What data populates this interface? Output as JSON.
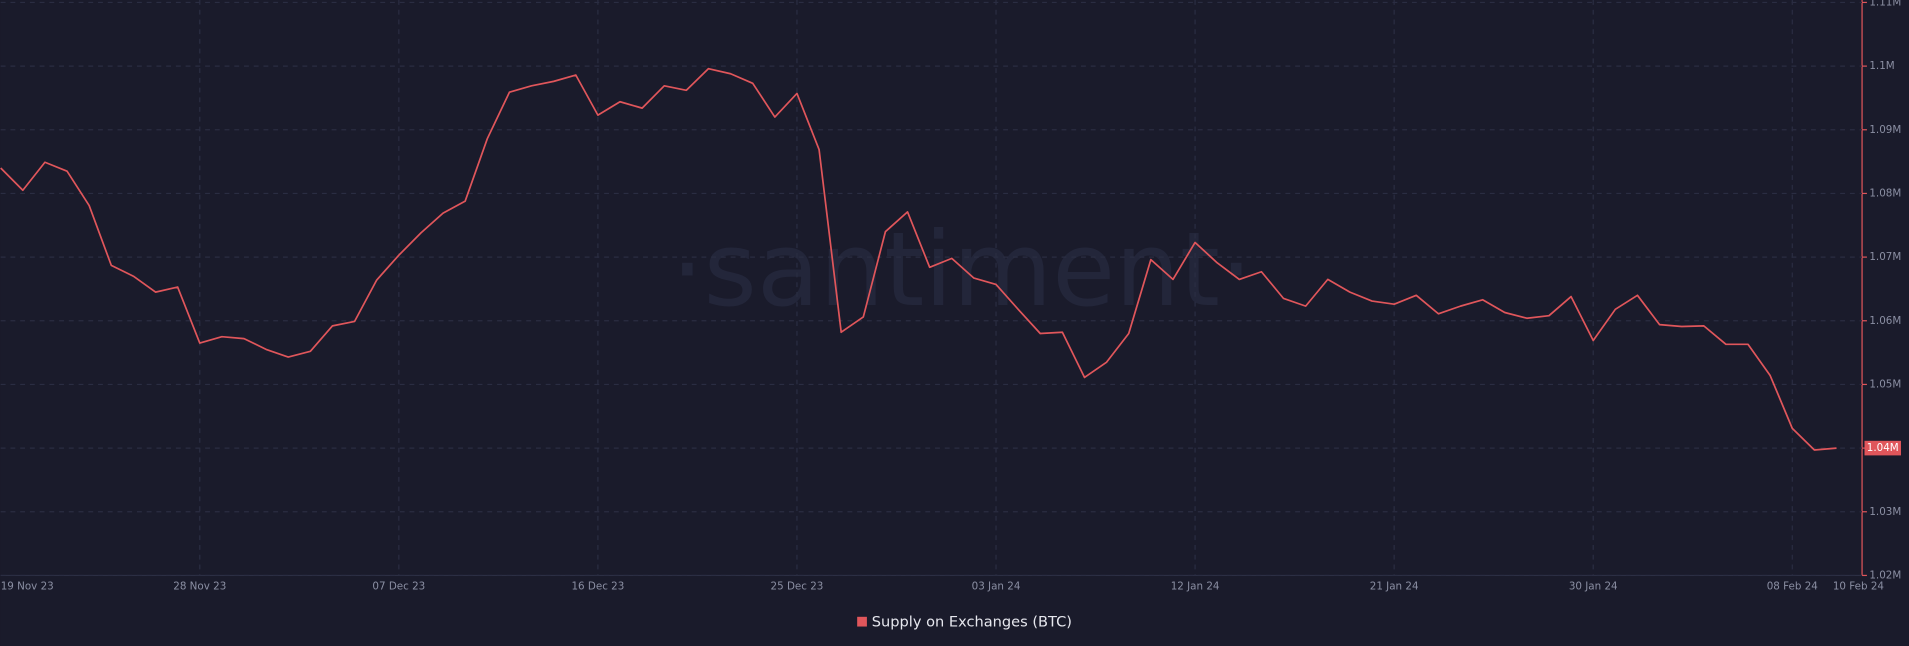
{
  "chart_data": {
    "type": "line",
    "watermark": "·santiment·",
    "categories": [
      "19 Nov 23",
      null,
      null,
      null,
      null,
      null,
      null,
      null,
      null,
      "28 Nov 23",
      null,
      null,
      null,
      null,
      null,
      null,
      null,
      null,
      "07 Dec 23",
      null,
      null,
      null,
      null,
      null,
      null,
      null,
      null,
      "16 Dec 23",
      null,
      null,
      null,
      null,
      null,
      null,
      null,
      null,
      "25 Dec 23",
      null,
      null,
      null,
      null,
      null,
      null,
      null,
      null,
      "03 Jan 24",
      null,
      null,
      null,
      null,
      null,
      null,
      null,
      null,
      "12 Jan 24",
      null,
      null,
      null,
      null,
      null,
      null,
      null,
      null,
      "21 Jan 24",
      null,
      null,
      null,
      null,
      null,
      null,
      null,
      null,
      "30 Jan 24",
      null,
      null,
      null,
      null,
      null,
      null,
      null,
      null,
      "08 Feb 24",
      null,
      "10 Feb 24"
    ],
    "series": [
      {
        "name": "Supply on Exchanges (BTC)",
        "color": "#e0565b",
        "values": [
          1084000,
          1080500,
          1084900,
          1083500,
          1078100,
          1068700,
          1067000,
          1064500,
          1065300,
          1056500,
          1057500,
          1057200,
          1055500,
          1054300,
          1055200,
          1059200,
          1059900,
          1066400,
          1070300,
          1073800,
          1076900,
          1078800,
          1088600,
          1095900,
          1096900,
          1097600,
          1098600,
          1092300,
          1094400,
          1093400,
          1096900,
          1096200,
          1099600,
          1098800,
          1097300,
          1092000,
          1095700,
          1086900,
          1058200,
          1060600,
          1074000,
          1077100,
          1068400,
          1069800,
          1066700,
          1065700,
          1061800,
          1058000,
          1058200,
          1051100,
          1053500,
          1058000,
          1069600,
          1066500,
          1072300,
          1069100,
          1066500,
          1067700,
          1063500,
          1062300,
          1066500,
          1064500,
          1063100,
          1062600,
          1064000,
          1061100,
          1062300,
          1063300,
          1061300,
          1060400,
          1060800,
          1063800,
          1056900,
          1061800,
          1064000,
          1059400,
          1059100,
          1059200,
          1056300,
          1056300,
          1051400,
          1043100,
          1039700,
          1040000
        ],
        "value_labels": [
          null,
          null,
          null,
          null,
          null,
          null,
          null,
          null,
          null,
          null,
          null,
          null,
          null,
          null,
          null,
          null,
          null,
          null,
          null,
          null,
          null,
          null,
          null,
          null,
          null,
          null,
          null,
          null,
          null,
          null,
          null,
          null,
          null,
          null,
          null,
          null,
          null,
          null,
          null,
          null,
          null,
          null,
          null,
          null,
          null,
          null,
          null,
          null,
          null,
          null,
          null,
          null,
          null,
          null,
          null,
          null,
          null,
          null,
          null,
          null,
          null,
          null,
          null,
          null,
          null,
          null,
          null,
          null,
          null,
          null,
          null,
          null,
          null,
          null,
          null,
          null,
          null,
          null,
          null,
          null,
          null,
          null,
          null,
          "1.04M"
        ]
      }
    ],
    "ylim": [
      1020000,
      1110000
    ],
    "yticks": [
      {
        "value": 1020000,
        "label": "1.02M"
      },
      {
        "value": 1030000,
        "label": "1.03M"
      },
      {
        "value": 1040000,
        "label": "1.04M"
      },
      {
        "value": 1050000,
        "label": "1.05M"
      },
      {
        "value": 1060000,
        "label": "1.06M"
      },
      {
        "value": 1070000,
        "label": "1.07M"
      },
      {
        "value": 1080000,
        "label": "1.08M"
      },
      {
        "value": 1090000,
        "label": "1.09M"
      },
      {
        "value": 1100000,
        "label": "1.1M"
      },
      {
        "value": 1110000,
        "label": "1.11M"
      }
    ],
    "y_axis_side": "right",
    "grid": true,
    "legend": "bottom"
  }
}
